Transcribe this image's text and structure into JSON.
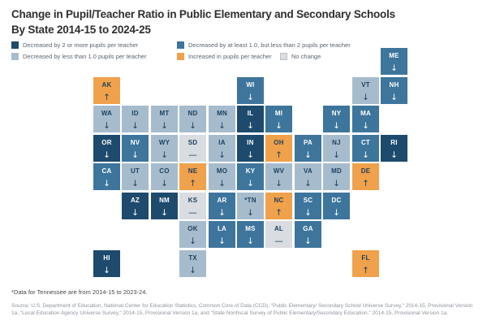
{
  "title": {
    "line1": "Change in Pupil/Teacher Ratio in Public Elementary and Secondary Schools",
    "line2": "By State 2014-15 to 2024-25"
  },
  "colors": {
    "dark": "#1e4a6d",
    "medium": "#3d759c",
    "light": "#a6bccd",
    "orange": "#f0a14b",
    "none": "#d9dce0",
    "none_border": "#bcc2c8",
    "text_on_dark": "#ffffff",
    "text_on_light": "#1c3f5e",
    "title_text": "#2d2e2f",
    "legend_text": "#5a646e",
    "source_text": "#8e959c"
  },
  "legend": {
    "items": [
      {
        "category": "dark",
        "label": "Decreased by 2 or more pupils per teacher"
      },
      {
        "category": "medium",
        "label": "Decreased by at least 1.0, but less than 2 pupils per teacher"
      },
      {
        "category": "light",
        "label": "Decreased by less than 1.0 pupils per teacher"
      },
      {
        "category": "orange",
        "label": "Increased in pupils per teacher"
      },
      {
        "category": "none",
        "label": "No change"
      }
    ]
  },
  "map": {
    "states": [
      {
        "abbr": "ME",
        "col": 10,
        "row": 0,
        "cat": "medium",
        "sym": "↓"
      },
      {
        "abbr": "AK",
        "col": 0,
        "row": 1,
        "cat": "orange",
        "sym": "↑"
      },
      {
        "abbr": "WI",
        "col": 5,
        "row": 1,
        "cat": "medium",
        "sym": "↓"
      },
      {
        "abbr": "VT",
        "col": 9,
        "row": 1,
        "cat": "light",
        "sym": "↓"
      },
      {
        "abbr": "NH",
        "col": 10,
        "row": 1,
        "cat": "medium",
        "sym": "↓"
      },
      {
        "abbr": "WA",
        "col": 0,
        "row": 2,
        "cat": "light",
        "sym": "↓"
      },
      {
        "abbr": "ID",
        "col": 1,
        "row": 2,
        "cat": "light",
        "sym": "↓"
      },
      {
        "abbr": "MT",
        "col": 2,
        "row": 2,
        "cat": "light",
        "sym": "↓"
      },
      {
        "abbr": "ND",
        "col": 3,
        "row": 2,
        "cat": "light",
        "sym": "↓"
      },
      {
        "abbr": "MN",
        "col": 4,
        "row": 2,
        "cat": "light",
        "sym": "↓"
      },
      {
        "abbr": "IL",
        "col": 5,
        "row": 2,
        "cat": "dark",
        "sym": "↓"
      },
      {
        "abbr": "MI",
        "col": 6,
        "row": 2,
        "cat": "medium",
        "sym": "↓"
      },
      {
        "abbr": "NY",
        "col": 8,
        "row": 2,
        "cat": "medium",
        "sym": "↓"
      },
      {
        "abbr": "MA",
        "col": 9,
        "row": 2,
        "cat": "medium",
        "sym": "↓"
      },
      {
        "abbr": "OR",
        "col": 0,
        "row": 3,
        "cat": "dark",
        "sym": "↓"
      },
      {
        "abbr": "NV",
        "col": 1,
        "row": 3,
        "cat": "medium",
        "sym": "↓"
      },
      {
        "abbr": "WY",
        "col": 2,
        "row": 3,
        "cat": "light",
        "sym": "↓"
      },
      {
        "abbr": "SD",
        "col": 3,
        "row": 3,
        "cat": "none",
        "sym": "—"
      },
      {
        "abbr": "IA",
        "col": 4,
        "row": 3,
        "cat": "light",
        "sym": "↓"
      },
      {
        "abbr": "IN",
        "col": 5,
        "row": 3,
        "cat": "dark",
        "sym": "↓"
      },
      {
        "abbr": "OH",
        "col": 6,
        "row": 3,
        "cat": "orange",
        "sym": "↑"
      },
      {
        "abbr": "PA",
        "col": 7,
        "row": 3,
        "cat": "medium",
        "sym": "↓"
      },
      {
        "abbr": "NJ",
        "col": 8,
        "row": 3,
        "cat": "light",
        "sym": "↓"
      },
      {
        "abbr": "CT",
        "col": 9,
        "row": 3,
        "cat": "medium",
        "sym": "↓"
      },
      {
        "abbr": "RI",
        "col": 10,
        "row": 3,
        "cat": "dark",
        "sym": "↓"
      },
      {
        "abbr": "CA",
        "col": 0,
        "row": 4,
        "cat": "medium",
        "sym": "↓"
      },
      {
        "abbr": "UT",
        "col": 1,
        "row": 4,
        "cat": "light",
        "sym": "↓"
      },
      {
        "abbr": "CO",
        "col": 2,
        "row": 4,
        "cat": "light",
        "sym": "↓"
      },
      {
        "abbr": "NE",
        "col": 3,
        "row": 4,
        "cat": "orange",
        "sym": "↑"
      },
      {
        "abbr": "MO",
        "col": 4,
        "row": 4,
        "cat": "light",
        "sym": "↓"
      },
      {
        "abbr": "KY",
        "col": 5,
        "row": 4,
        "cat": "medium",
        "sym": "↓"
      },
      {
        "abbr": "WV",
        "col": 6,
        "row": 4,
        "cat": "light",
        "sym": "↓"
      },
      {
        "abbr": "VA",
        "col": 7,
        "row": 4,
        "cat": "light",
        "sym": "↓"
      },
      {
        "abbr": "MD",
        "col": 8,
        "row": 4,
        "cat": "light",
        "sym": "↓"
      },
      {
        "abbr": "DE",
        "col": 9,
        "row": 4,
        "cat": "orange",
        "sym": "↑"
      },
      {
        "abbr": "AZ",
        "col": 1,
        "row": 5,
        "cat": "dark",
        "sym": "↓"
      },
      {
        "abbr": "NM",
        "col": 2,
        "row": 5,
        "cat": "dark",
        "sym": "↓"
      },
      {
        "abbr": "KS",
        "col": 3,
        "row": 5,
        "cat": "none",
        "sym": "—"
      },
      {
        "abbr": "AR",
        "col": 4,
        "row": 5,
        "cat": "medium",
        "sym": "↓"
      },
      {
        "abbr": "*TN",
        "col": 5,
        "row": 5,
        "cat": "light",
        "sym": "↓"
      },
      {
        "abbr": "NC",
        "col": 6,
        "row": 5,
        "cat": "orange",
        "sym": "↑"
      },
      {
        "abbr": "SC",
        "col": 7,
        "row": 5,
        "cat": "medium",
        "sym": "↓"
      },
      {
        "abbr": "DC",
        "col": 8,
        "row": 5,
        "cat": "medium",
        "sym": "↓"
      },
      {
        "abbr": "OK",
        "col": 3,
        "row": 6,
        "cat": "light",
        "sym": "↓"
      },
      {
        "abbr": "LA",
        "col": 4,
        "row": 6,
        "cat": "medium",
        "sym": "↓"
      },
      {
        "abbr": "MS",
        "col": 5,
        "row": 6,
        "cat": "medium",
        "sym": "↓"
      },
      {
        "abbr": "AL",
        "col": 6,
        "row": 6,
        "cat": "none",
        "sym": "—"
      },
      {
        "abbr": "GA",
        "col": 7,
        "row": 6,
        "cat": "medium",
        "sym": "↓"
      },
      {
        "abbr": "HI",
        "col": 0,
        "row": 7,
        "cat": "dark",
        "sym": "↓"
      },
      {
        "abbr": "TX",
        "col": 3,
        "row": 7,
        "cat": "light",
        "sym": "↓"
      },
      {
        "abbr": "FL",
        "col": 9,
        "row": 7,
        "cat": "orange",
        "sym": "↑"
      }
    ]
  },
  "notes": {
    "footnote": "*Data for Tennessee are from 2014-15 to 2023-24.",
    "source": "Source: U.S. Department of Education, National Center for Education Statistics, Common Core of Data (CCD), \"Public Elementary/ Secondary School Universe Survey,\" 2014-15, Provisional Version 1a, \"Local Education Agency Universe Survey,\" 2014-15, Provisional Version 1a, and \"State Nonfiscal Survey of Public Elementary/Secondary Education,\" 2014-15, Provisional Version 1a."
  },
  "chart_data": {
    "type": "heatmap",
    "title": "Change in Pupil/Teacher Ratio in Public Elementary and Secondary Schools By State 2014-15 to 2024-25",
    "legend_entries": [
      "Decreased by 2 or more pupils per teacher",
      "Decreased by at least 1.0, but less than 2 pupils per teacher",
      "Decreased by less than 1.0 pupils per teacher",
      "Increased in pupils per teacher",
      "No change"
    ],
    "categories": {
      "decreased_2_or_more": [
        "IL",
        "OR",
        "IN",
        "RI",
        "AZ",
        "NM",
        "HI"
      ],
      "decreased_1_to_2": [
        "ME",
        "WI",
        "NH",
        "MI",
        "NY",
        "MA",
        "NV",
        "PA",
        "CT",
        "CA",
        "KY",
        "AR",
        "SC",
        "DC",
        "LA",
        "MS",
        "GA"
      ],
      "decreased_less_than_1": [
        "VT",
        "WA",
        "ID",
        "MT",
        "ND",
        "MN",
        "WY",
        "IA",
        "NJ",
        "UT",
        "CO",
        "MO",
        "WV",
        "VA",
        "MD",
        "TN",
        "OK",
        "TX"
      ],
      "increased": [
        "AK",
        "OH",
        "NE",
        "DE",
        "NC",
        "FL"
      ],
      "no_change": [
        "SD",
        "KS",
        "AL"
      ]
    },
    "note": "Tennessee data are from 2014-15 to 2023-24"
  }
}
